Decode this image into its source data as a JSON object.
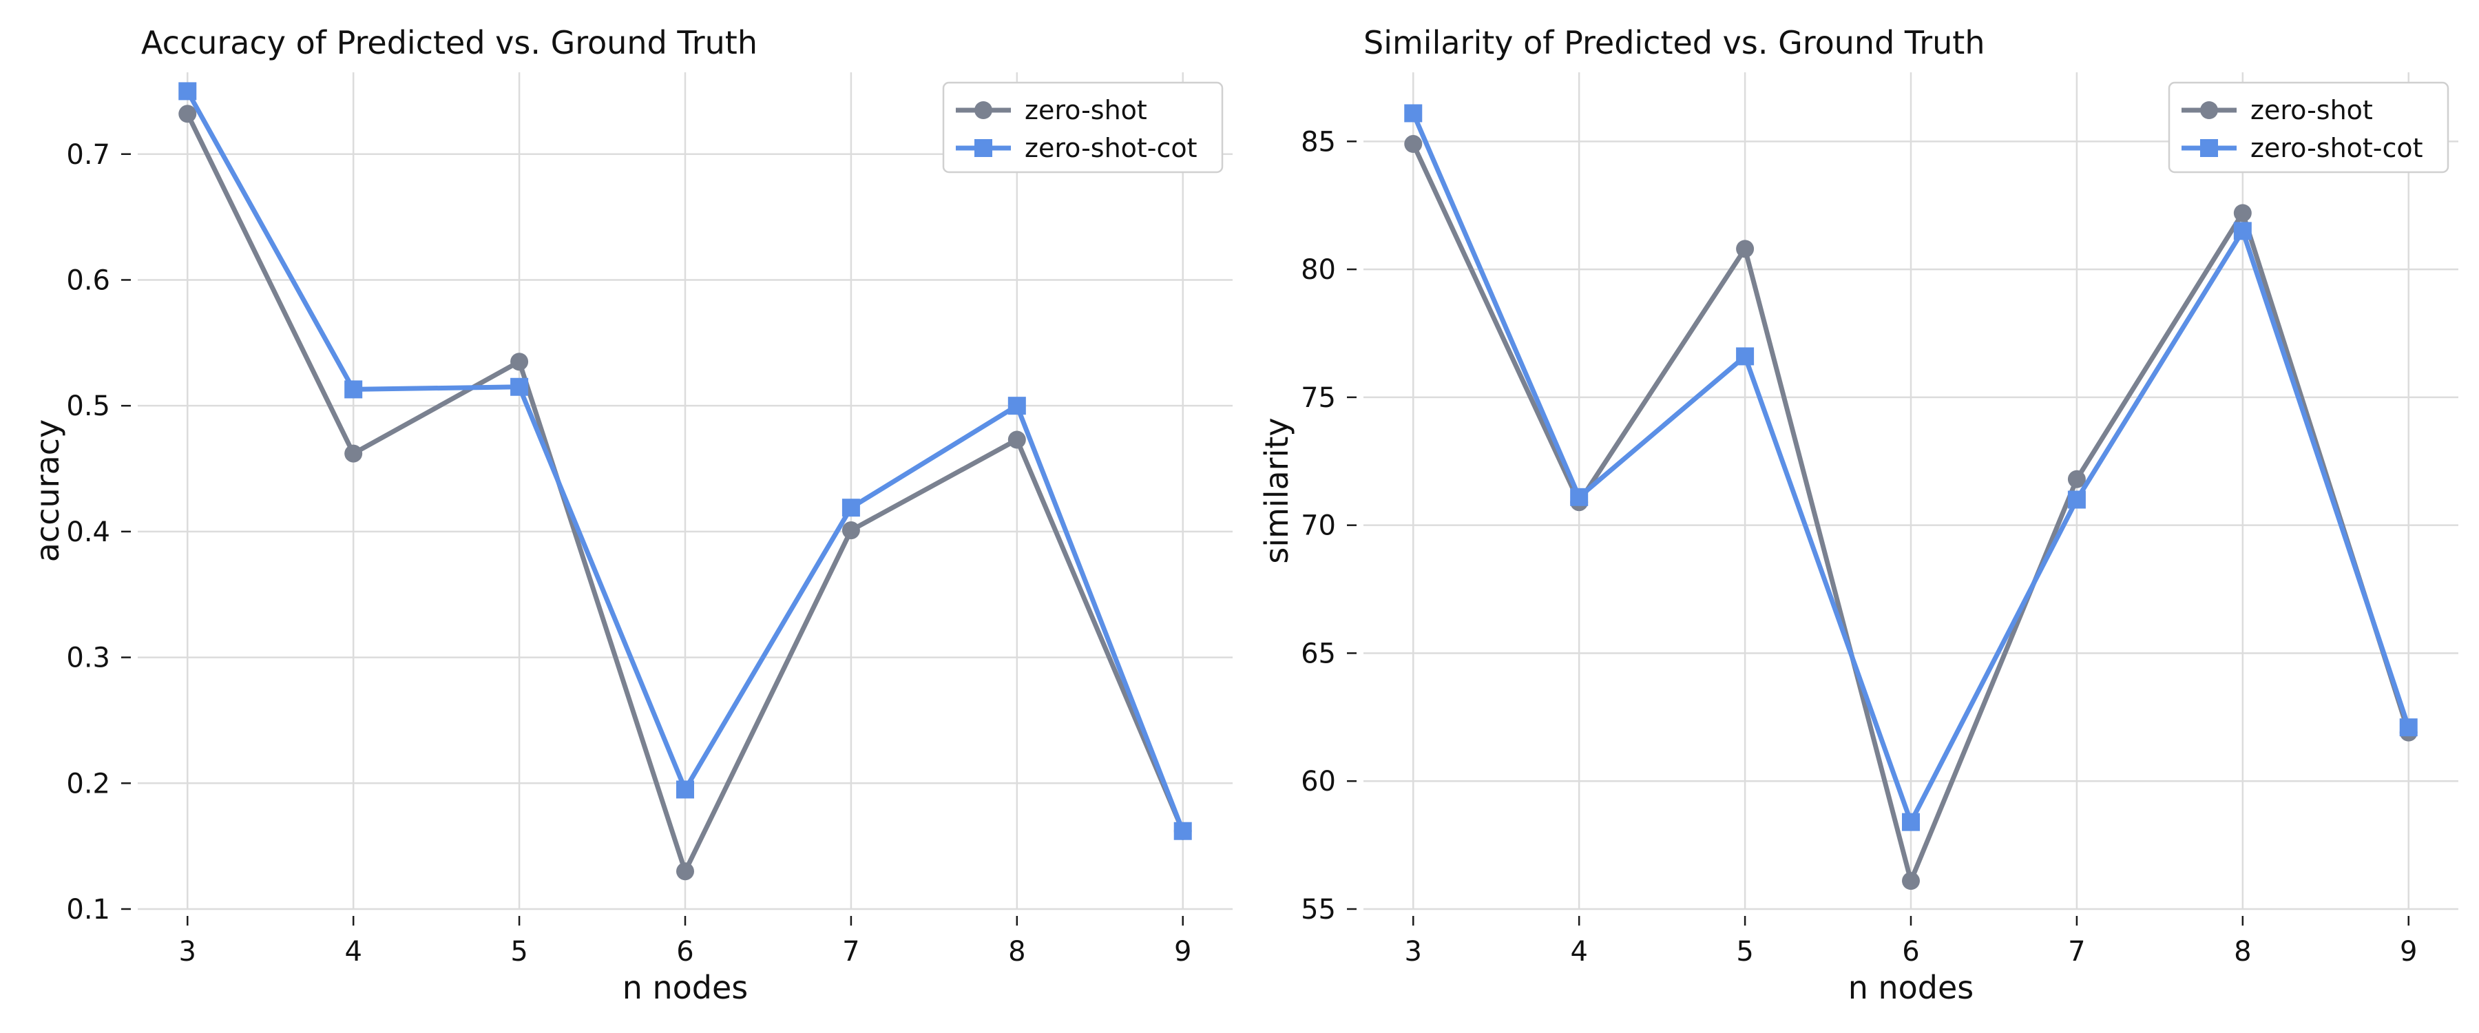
{
  "chart_data": [
    {
      "type": "line",
      "title": "Accuracy of Predicted vs. Ground Truth",
      "xlabel": "n nodes",
      "ylabel": "accuracy",
      "x": [
        3,
        4,
        5,
        6,
        7,
        8,
        9
      ],
      "xticks": [
        "3",
        "4",
        "5",
        "6",
        "7",
        "8",
        "9"
      ],
      "yticks": [
        "0.1",
        "0.2",
        "0.3",
        "0.4",
        "0.5",
        "0.6",
        "0.7"
      ],
      "ylim": [
        0.1,
        0.765
      ],
      "xlim": [
        2.7,
        9.3
      ],
      "grid": true,
      "legend_position": "top-right",
      "series": [
        {
          "name": "zero-shot",
          "values": [
            0.732,
            0.462,
            0.535,
            0.13,
            0.401,
            0.473,
            0.162
          ],
          "color": "#7a8190",
          "marker": "circle"
        },
        {
          "name": "zero-shot-cot",
          "values": [
            0.75,
            0.513,
            0.515,
            0.195,
            0.419,
            0.5,
            0.162
          ],
          "color": "#5b8fe6",
          "marker": "square"
        }
      ]
    },
    {
      "type": "line",
      "title": "Similarity of Predicted vs. Ground Truth",
      "xlabel": "n nodes",
      "ylabel": "similarity",
      "x": [
        3,
        4,
        5,
        6,
        7,
        8,
        9
      ],
      "xticks": [
        "3",
        "4",
        "5",
        "6",
        "7",
        "8",
        "9"
      ],
      "yticks": [
        "55",
        "60",
        "65",
        "70",
        "75",
        "80",
        "85"
      ],
      "ylim": [
        55,
        87.7
      ],
      "xlim": [
        2.7,
        9.3
      ],
      "grid": true,
      "legend_position": "top-right",
      "series": [
        {
          "name": "zero-shot",
          "values": [
            84.9,
            70.9,
            80.8,
            56.1,
            71.8,
            82.2,
            61.9
          ],
          "color": "#7a8190",
          "marker": "circle"
        },
        {
          "name": "zero-shot-cot",
          "values": [
            86.1,
            71.1,
            76.6,
            58.4,
            71.0,
            81.5,
            62.1
          ],
          "color": "#5b8fe6",
          "marker": "square"
        }
      ]
    }
  ]
}
